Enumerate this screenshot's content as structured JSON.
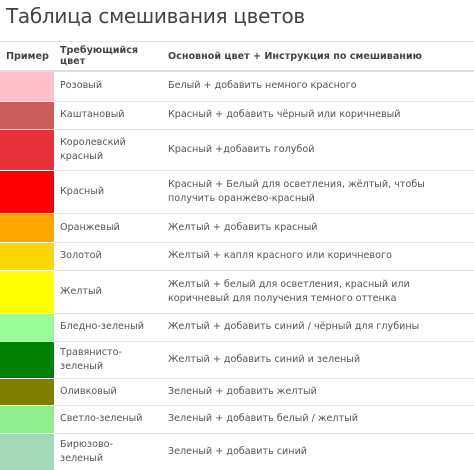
{
  "title": "Таблица смешивания цветов",
  "table": {
    "header": [
      "Пример",
      "Требующийся цвет",
      "Основной цвет + Инструкция по смешиванию"
    ],
    "rows": [
      [
        "Розовый",
        "Белый + добавить немного красного"
      ],
      [
        "Каштановый",
        "Красный + добавить чёрный или коричневый"
      ],
      [
        "Королевский красный",
        "Красный +добавить голубой"
      ],
      [
        "Красный",
        "Красный + Белый для осветления, жёлтый, чтобы получить оранжево-красный"
      ],
      [
        "Оранжевый",
        "Желтый + добавить красный"
      ],
      [
        "Золотой",
        "Желтый + капля красного или коричневого"
      ],
      [
        "Желтый",
        "Желтый + белый для осветления, красный или коричневый для получения темного оттенка"
      ],
      [
        "Бледно-зеленый",
        "Желтый + добавить синий / чёрный для глубины"
      ],
      [
        "Травянисто-зеленый",
        "Желтый + добавить синий и зеленый"
      ],
      [
        "Оливковый",
        "Зеленый + добавить желтый"
      ],
      [
        "Светло-зеленый",
        "Зеленый + добавить белый / желтый"
      ],
      [
        "Бирюзово-зеленый",
        "Зеленый + добавить синий"
      ]
    ]
  }
}
